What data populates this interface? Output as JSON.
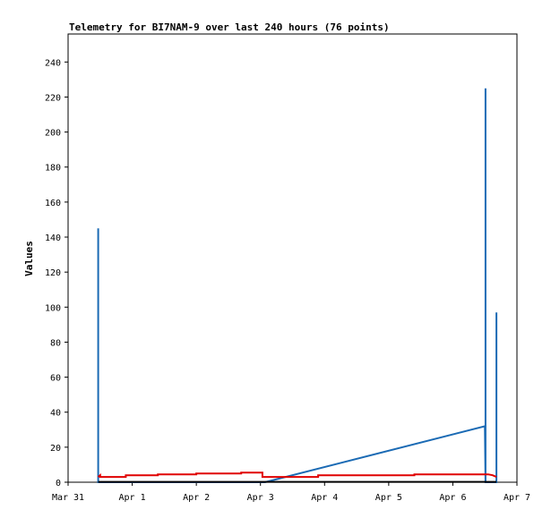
{
  "chart_data": {
    "type": "line",
    "title": "Telemetry for BI7NAM-9 over last 240 hours (76 points)",
    "xlabel": "",
    "ylabel": "Values",
    "x_unit": "days since Mar 31 00:00",
    "xlim": [
      0,
      7
    ],
    "ylim": [
      0,
      256
    ],
    "x_ticks": [
      {
        "x": 0,
        "label": "Mar 31"
      },
      {
        "x": 1,
        "label": "Apr 1"
      },
      {
        "x": 2,
        "label": "Apr 2"
      },
      {
        "x": 3,
        "label": "Apr 3"
      },
      {
        "x": 4,
        "label": "Apr 4"
      },
      {
        "x": 5,
        "label": "Apr 5"
      },
      {
        "x": 6,
        "label": "Apr 6"
      },
      {
        "x": 7,
        "label": "Apr 7"
      }
    ],
    "y_ticks": [
      0,
      20,
      40,
      60,
      80,
      100,
      120,
      140,
      160,
      180,
      200,
      220,
      240
    ],
    "grid": false,
    "legend": "none",
    "series": [
      {
        "color": "#1a6ab4",
        "points": [
          [
            0.47,
            0
          ],
          [
            0.47,
            145
          ],
          [
            0.47,
            0
          ],
          [
            3.07,
            0
          ],
          [
            6.5,
            32
          ],
          [
            6.51,
            0
          ],
          [
            6.51,
            225
          ],
          [
            6.51,
            0
          ],
          [
            6.68,
            0
          ],
          [
            6.68,
            97
          ],
          [
            6.68,
            0
          ]
        ]
      },
      {
        "color": "#e00000",
        "points": [
          [
            0.47,
            3
          ],
          [
            0.5,
            4
          ],
          [
            0.5,
            3
          ],
          [
            0.9,
            3
          ],
          [
            0.9,
            4
          ],
          [
            1.4,
            4
          ],
          [
            1.4,
            4.5
          ],
          [
            2.0,
            4.5
          ],
          [
            2.0,
            5
          ],
          [
            2.7,
            5
          ],
          [
            2.7,
            5.5
          ],
          [
            3.03,
            5.5
          ],
          [
            3.03,
            3
          ],
          [
            3.9,
            3
          ],
          [
            3.9,
            4
          ],
          [
            5.4,
            4
          ],
          [
            5.4,
            4.5
          ],
          [
            6.55,
            4.5
          ],
          [
            6.62,
            4
          ],
          [
            6.68,
            3
          ]
        ]
      },
      {
        "color": "#000000",
        "points": [
          [
            0.47,
            0.2
          ],
          [
            6.68,
            0.2
          ]
        ]
      }
    ]
  }
}
